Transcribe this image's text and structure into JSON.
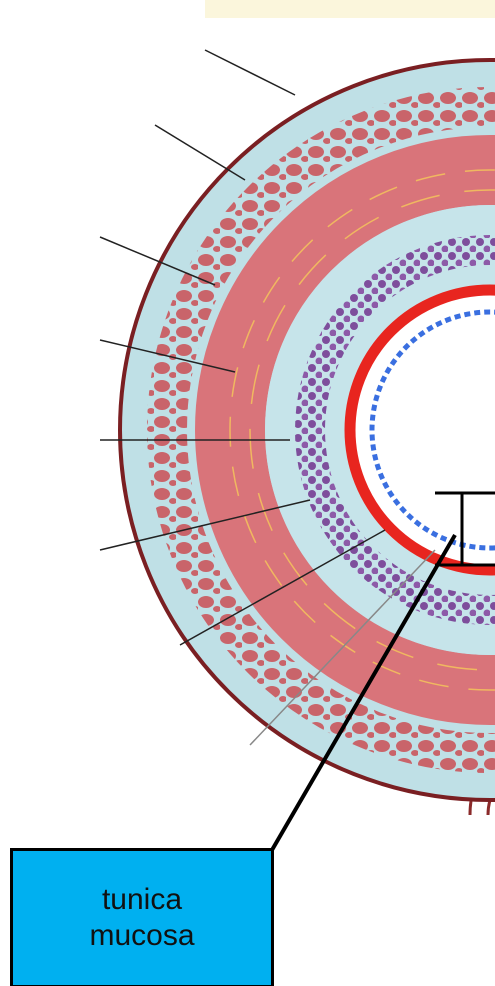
{
  "label": {
    "lines": [
      "tunica",
      "mucosa"
    ]
  }
}
